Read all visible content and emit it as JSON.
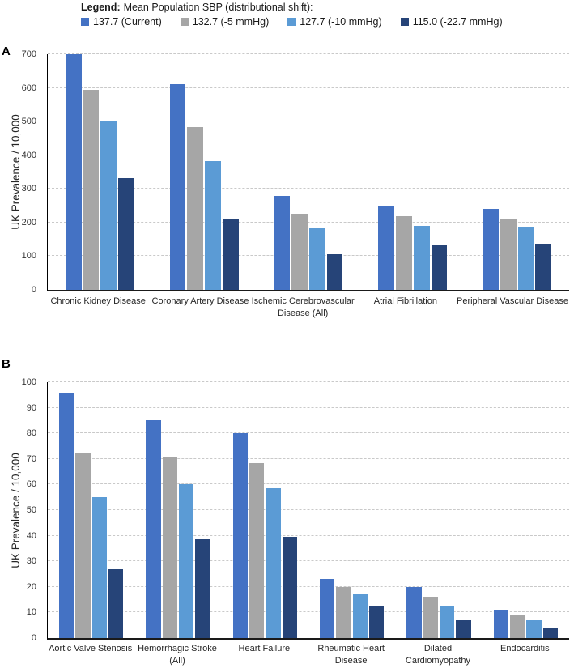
{
  "legend": {
    "prefix": "Legend:",
    "title": "Mean Population SBP (distributional shift):",
    "series": [
      {
        "label": "137.7 (Current)",
        "color": "#4472C4"
      },
      {
        "label": "132.7 (-5 mmHg)",
        "color": "#A6A6A6"
      },
      {
        "label": "127.7 (-10 mmHg)",
        "color": "#5B9BD5"
      },
      {
        "label": "115.0 (-22.7 mmHg)",
        "color": "#264478"
      }
    ]
  },
  "chart_data": [
    {
      "panel": "A",
      "type": "bar",
      "title": "",
      "xlabel": "",
      "ylabel": "UK Prevalence / 10,000",
      "ylim": [
        0,
        700
      ],
      "ytick_step": 100,
      "grid": true,
      "legend_position": "top",
      "categories": [
        "Chronic Kidney Disease",
        "Coronary Artery Disease",
        "Ischemic Cerebrovascular Disease (All)",
        "Atrial Fibrillation",
        "Peripheral Vascular Disease"
      ],
      "xlabel_lines": [
        [
          "Chronic Kidney Disease"
        ],
        [
          "Coronary Artery Disease"
        ],
        [
          "Ischemic Cerebrovascular",
          "Disease (All)"
        ],
        [
          "Atrial Fibrillation"
        ],
        [
          "Peripheral Vascular Disease"
        ]
      ],
      "series": [
        {
          "name": "137.7 (Current)",
          "values": [
            700,
            612,
            280,
            250,
            240
          ]
        },
        {
          "name": "132.7 (-5 mmHg)",
          "values": [
            593,
            484,
            227,
            219,
            212
          ]
        },
        {
          "name": "127.7 (-10 mmHg)",
          "values": [
            503,
            383,
            183,
            190,
            187
          ]
        },
        {
          "name": "115.0 (-22.7 mmHg)",
          "values": [
            331,
            210,
            107,
            135,
            137
          ]
        }
      ]
    },
    {
      "panel": "B",
      "type": "bar",
      "title": "",
      "xlabel": "",
      "ylabel": "UK Prevalence / 10,000",
      "ylim": [
        0,
        100
      ],
      "ytick_step": 10,
      "grid": true,
      "legend_position": "top",
      "categories": [
        "Aortic Valve Stenosis",
        "Hemorrhagic Stroke (All)",
        "Heart Failure",
        "Rheumatic Heart Disease",
        "Dilated Cardiomyopathy",
        "Endocarditis"
      ],
      "xlabel_lines": [
        [
          "Aortic Valve Stenosis"
        ],
        [
          "Hemorrhagic Stroke",
          "(All)"
        ],
        [
          "Heart Failure"
        ],
        [
          "Rheumatic Heart",
          "Disease"
        ],
        [
          "Dilated",
          "Cardiomyopathy"
        ],
        [
          "Endocarditis"
        ]
      ],
      "series": [
        {
          "name": "137.7 (Current)",
          "values": [
            96,
            85,
            80,
            23,
            20,
            11
          ]
        },
        {
          "name": "132.7 (-5 mmHg)",
          "values": [
            72.5,
            71,
            68.5,
            20,
            16,
            9
          ]
        },
        {
          "name": "127.7 (-10 mmHg)",
          "values": [
            55,
            60,
            58.5,
            17.5,
            12.5,
            7
          ]
        },
        {
          "name": "115.0 (-22.7 mmHg)",
          "values": [
            27,
            38.5,
            39.5,
            12.5,
            7,
            4
          ]
        }
      ]
    }
  ]
}
